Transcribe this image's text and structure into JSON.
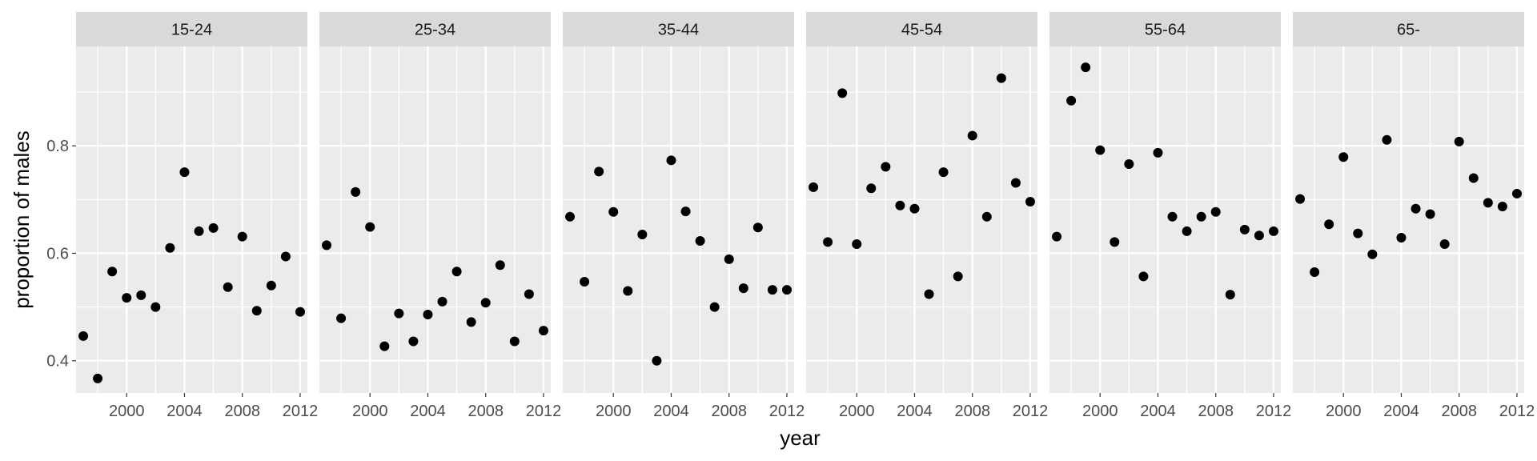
{
  "chart_data": {
    "type": "scatter",
    "facet_by": "age group",
    "xlabel": "year",
    "ylabel": "proportion of males",
    "xlim": [
      1996.5,
      2012.5
    ],
    "ylim": [
      0.34,
      0.985
    ],
    "x_ticks": [
      2000,
      2004,
      2008,
      2012
    ],
    "x_tick_labels": [
      "2000",
      "2004",
      "2008",
      "2012"
    ],
    "y_ticks": [
      0.4,
      0.6,
      0.8
    ],
    "y_tick_labels": [
      "0.4",
      "0.6",
      "0.8"
    ],
    "x_minor_ticks": [
      1998,
      2002,
      2006,
      2010
    ],
    "y_minor_ticks": [
      0.5,
      0.7,
      0.9
    ],
    "grid": true,
    "legend": "none",
    "x": [
      1997,
      1998,
      1999,
      2000,
      2001,
      2002,
      2003,
      2004,
      2005,
      2006,
      2007,
      2008,
      2009,
      2010,
      2011,
      2012
    ],
    "panels": [
      {
        "label": "15-24",
        "y": [
          0.446,
          0.367,
          0.566,
          0.517,
          0.522,
          0.5,
          0.61,
          0.751,
          0.641,
          0.647,
          0.537,
          0.631,
          0.493,
          0.54,
          0.594,
          0.491
        ]
      },
      {
        "label": "25-34",
        "y": [
          0.615,
          0.479,
          0.714,
          0.649,
          0.427,
          0.488,
          0.436,
          0.486,
          0.51,
          0.566,
          0.472,
          0.508,
          0.578,
          0.436,
          0.524,
          0.456
        ]
      },
      {
        "label": "35-44",
        "y": [
          0.668,
          0.547,
          0.752,
          0.677,
          0.53,
          0.635,
          0.4,
          0.773,
          0.678,
          0.623,
          0.5,
          0.589,
          0.535,
          0.648,
          0.532,
          0.532
        ]
      },
      {
        "label": "45-54",
        "y": [
          0.723,
          0.621,
          0.898,
          0.617,
          0.721,
          0.761,
          0.689,
          0.683,
          0.524,
          0.751,
          0.557,
          0.819,
          0.668,
          0.926,
          0.731,
          0.696
        ]
      },
      {
        "label": "55-64",
        "y": [
          0.631,
          0.884,
          0.946,
          0.792,
          0.621,
          0.766,
          0.557,
          0.787,
          0.668,
          0.641,
          0.668,
          0.677,
          0.523,
          0.644,
          0.633,
          0.641
        ]
      },
      {
        "label": "65-",
        "y": [
          0.701,
          0.565,
          0.654,
          0.779,
          0.637,
          0.598,
          0.811,
          0.629,
          0.683,
          0.673,
          0.617,
          0.808,
          0.74,
          0.694,
          0.687,
          0.711
        ]
      }
    ]
  }
}
